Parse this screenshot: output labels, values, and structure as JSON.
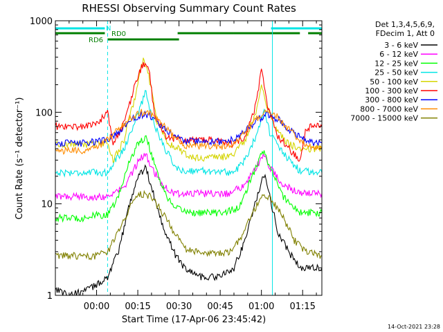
{
  "chart_data": {
    "type": "line",
    "title": "RHESSI Observing Summary Count Rates",
    "xlabel": "Start Time (17-Apr-06 23:45:42)",
    "ylabel": "Count Rate (s⁻¹ detector⁻¹)",
    "yscale": "log",
    "ylim": [
      1,
      1000
    ],
    "xlim_minutes": [
      -15,
      82
    ],
    "grid": false,
    "legend_position": "right",
    "legend_header": [
      "Det 1,3,4,5,6,9,",
      "FDecim 1, Att 0"
    ],
    "x_ticks": [
      {
        "t": 0,
        "label": "00:00"
      },
      {
        "t": 15,
        "label": "00:15"
      },
      {
        "t": 30,
        "label": "00:30"
      },
      {
        "t": 45,
        "label": "00:45"
      },
      {
        "t": 60,
        "label": "01:00"
      },
      {
        "t": 75,
        "label": "01:15"
      }
    ],
    "y_ticks": [
      {
        "v": 1,
        "label": "1"
      },
      {
        "v": 10,
        "label": "10"
      },
      {
        "v": 100,
        "label": "100"
      },
      {
        "v": 1000,
        "label": "1000"
      }
    ],
    "night_markers_minutes": [
      -15,
      4,
      64,
      83
    ],
    "bars": {
      "N": {
        "label": "N",
        "color": "#00e5e5",
        "segments": [
          [
            -15,
            3
          ],
          [
            63.5,
            82
          ]
        ]
      },
      "RD0": {
        "label": "RD0",
        "color": "#007f00",
        "segments": [
          [
            -15,
            3
          ],
          [
            29.5,
            50
          ],
          [
            50,
            74
          ],
          [
            77,
            82
          ]
        ]
      },
      "RD6": {
        "label": "RD6",
        "color": "#007f00",
        "segments": [
          [
            4,
            30
          ]
        ]
      }
    },
    "series": [
      {
        "name": "3 - 6 keV",
        "color": "#000000",
        "points": [
          [
            -15,
            1.2
          ],
          [
            -10,
            1.0
          ],
          [
            -5,
            1.1
          ],
          [
            0,
            1.3
          ],
          [
            4,
            1.6
          ],
          [
            8,
            3
          ],
          [
            12,
            10
          ],
          [
            15,
            20
          ],
          [
            18,
            25
          ],
          [
            20,
            15
          ],
          [
            24,
            6
          ],
          [
            28,
            3
          ],
          [
            32,
            2.0
          ],
          [
            38,
            1.6
          ],
          [
            45,
            1.6
          ],
          [
            50,
            2.0
          ],
          [
            54,
            4
          ],
          [
            58,
            11
          ],
          [
            61,
            21
          ],
          [
            63,
            12
          ],
          [
            66,
            5
          ],
          [
            70,
            3
          ],
          [
            74,
            2.0
          ],
          [
            78,
            2.0
          ],
          [
            82,
            2.0
          ]
        ]
      },
      {
        "name": "6 - 12 keV",
        "color": "#ff00ff",
        "points": [
          [
            -15,
            12
          ],
          [
            -5,
            12
          ],
          [
            0,
            12
          ],
          [
            4,
            12
          ],
          [
            10,
            15
          ],
          [
            14,
            25
          ],
          [
            16,
            32
          ],
          [
            18,
            35
          ],
          [
            20,
            25
          ],
          [
            24,
            16
          ],
          [
            28,
            13
          ],
          [
            40,
            13
          ],
          [
            48,
            13
          ],
          [
            54,
            16
          ],
          [
            58,
            25
          ],
          [
            61,
            35
          ],
          [
            63,
            25
          ],
          [
            68,
            16
          ],
          [
            74,
            13
          ],
          [
            82,
            13
          ]
        ]
      },
      {
        "name": "12 - 25 keV",
        "color": "#00ff00",
        "points": [
          [
            -15,
            7
          ],
          [
            -5,
            7
          ],
          [
            0,
            7.5
          ],
          [
            4,
            7.5
          ],
          [
            8,
            12
          ],
          [
            12,
            30
          ],
          [
            15,
            45
          ],
          [
            18,
            55
          ],
          [
            20,
            35
          ],
          [
            24,
            15
          ],
          [
            28,
            9
          ],
          [
            35,
            8
          ],
          [
            45,
            8
          ],
          [
            52,
            9
          ],
          [
            58,
            25
          ],
          [
            61,
            40
          ],
          [
            63,
            25
          ],
          [
            68,
            12
          ],
          [
            74,
            8
          ],
          [
            82,
            8
          ]
        ]
      },
      {
        "name": "25 - 50 keV",
        "color": "#00e5e5",
        "points": [
          [
            -15,
            22
          ],
          [
            -5,
            22
          ],
          [
            0,
            22
          ],
          [
            4,
            22
          ],
          [
            6,
            28
          ],
          [
            10,
            40
          ],
          [
            14,
            80
          ],
          [
            18,
            170
          ],
          [
            20,
            90
          ],
          [
            24,
            45
          ],
          [
            28,
            28
          ],
          [
            30,
            23
          ],
          [
            40,
            23
          ],
          [
            50,
            22
          ],
          [
            54,
            30
          ],
          [
            58,
            55
          ],
          [
            61,
            110
          ],
          [
            63,
            60
          ],
          [
            68,
            35
          ],
          [
            74,
            23
          ],
          [
            82,
            22
          ]
        ]
      },
      {
        "name": "50 - 100 keV",
        "color": "#d4d400",
        "points": [
          [
            -15,
            45
          ],
          [
            -5,
            45
          ],
          [
            0,
            45
          ],
          [
            4,
            47
          ],
          [
            6,
            30
          ],
          [
            10,
            50
          ],
          [
            14,
            150
          ],
          [
            17,
            380
          ],
          [
            19,
            250
          ],
          [
            22,
            80
          ],
          [
            26,
            45
          ],
          [
            30,
            40
          ],
          [
            34,
            32
          ],
          [
            45,
            32
          ],
          [
            50,
            35
          ],
          [
            54,
            50
          ],
          [
            58,
            100
          ],
          [
            60,
            200
          ],
          [
            62,
            120
          ],
          [
            66,
            60
          ],
          [
            70,
            45
          ],
          [
            74,
            40
          ],
          [
            78,
            40
          ],
          [
            82,
            40
          ]
        ]
      },
      {
        "name": "100 - 300 keV",
        "color": "#ff0000",
        "points": [
          [
            -15,
            70
          ],
          [
            -5,
            70
          ],
          [
            0,
            75
          ],
          [
            4,
            100
          ],
          [
            6,
            45
          ],
          [
            10,
            75
          ],
          [
            14,
            200
          ],
          [
            17,
            350
          ],
          [
            19,
            300
          ],
          [
            21,
            100
          ],
          [
            25,
            55
          ],
          [
            30,
            50
          ],
          [
            34,
            50
          ],
          [
            45,
            50
          ],
          [
            50,
            45
          ],
          [
            54,
            55
          ],
          [
            58,
            120
          ],
          [
            60,
            300
          ],
          [
            62,
            120
          ],
          [
            66,
            55
          ],
          [
            70,
            40
          ],
          [
            74,
            30
          ],
          [
            76,
            60
          ],
          [
            78,
            70
          ],
          [
            82,
            70
          ]
        ]
      },
      {
        "name": "300 - 800 keV",
        "color": "#0000ff",
        "points": [
          [
            -15,
            46
          ],
          [
            -5,
            46
          ],
          [
            0,
            48
          ],
          [
            4,
            50
          ],
          [
            8,
            60
          ],
          [
            12,
            80
          ],
          [
            16,
            95
          ],
          [
            20,
            90
          ],
          [
            24,
            70
          ],
          [
            28,
            55
          ],
          [
            32,
            48
          ],
          [
            45,
            48
          ],
          [
            50,
            50
          ],
          [
            54,
            62
          ],
          [
            58,
            80
          ],
          [
            62,
            95
          ],
          [
            66,
            85
          ],
          [
            70,
            65
          ],
          [
            74,
            55
          ],
          [
            78,
            47
          ],
          [
            82,
            46
          ]
        ]
      },
      {
        "name": "800 - 7000 keV",
        "color": "#ff8c00",
        "points": [
          [
            -15,
            38
          ],
          [
            -5,
            38
          ],
          [
            0,
            42
          ],
          [
            4,
            50
          ],
          [
            8,
            65
          ],
          [
            12,
            85
          ],
          [
            16,
            100
          ],
          [
            20,
            95
          ],
          [
            24,
            75
          ],
          [
            28,
            55
          ],
          [
            32,
            43
          ],
          [
            45,
            42
          ],
          [
            50,
            45
          ],
          [
            54,
            60
          ],
          [
            58,
            85
          ],
          [
            62,
            100
          ],
          [
            66,
            90
          ],
          [
            70,
            65
          ],
          [
            74,
            50
          ],
          [
            78,
            42
          ],
          [
            82,
            40
          ]
        ]
      },
      {
        "name": "7000 - 15000 keV",
        "color": "#808000",
        "points": [
          [
            -15,
            2.7
          ],
          [
            -5,
            2.7
          ],
          [
            0,
            2.7
          ],
          [
            4,
            3
          ],
          [
            8,
            5
          ],
          [
            12,
            9
          ],
          [
            16,
            13
          ],
          [
            20,
            12
          ],
          [
            24,
            8
          ],
          [
            28,
            5
          ],
          [
            32,
            3.2
          ],
          [
            40,
            2.8
          ],
          [
            48,
            3
          ],
          [
            52,
            4
          ],
          [
            56,
            7
          ],
          [
            60,
            12
          ],
          [
            64,
            11
          ],
          [
            68,
            7
          ],
          [
            72,
            4
          ],
          [
            76,
            3
          ],
          [
            82,
            2.7
          ]
        ]
      }
    ]
  },
  "footer": {
    "timestamp": "14-Oct-2021 23:28"
  }
}
